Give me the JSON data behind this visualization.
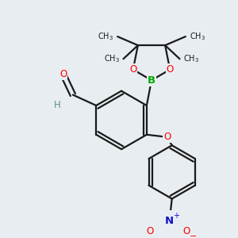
{
  "bg_color": "#e8edf1",
  "bond_color": "#1a1a1a",
  "bond_width": 1.6,
  "atom_colors": {
    "O": "#ff0000",
    "B": "#00aa00",
    "N": "#1111cc",
    "C": "#1a1a1a",
    "H": "#5a9090"
  },
  "font_size": 8.5,
  "fig_size": [
    3.0,
    3.0
  ],
  "dpi": 100
}
